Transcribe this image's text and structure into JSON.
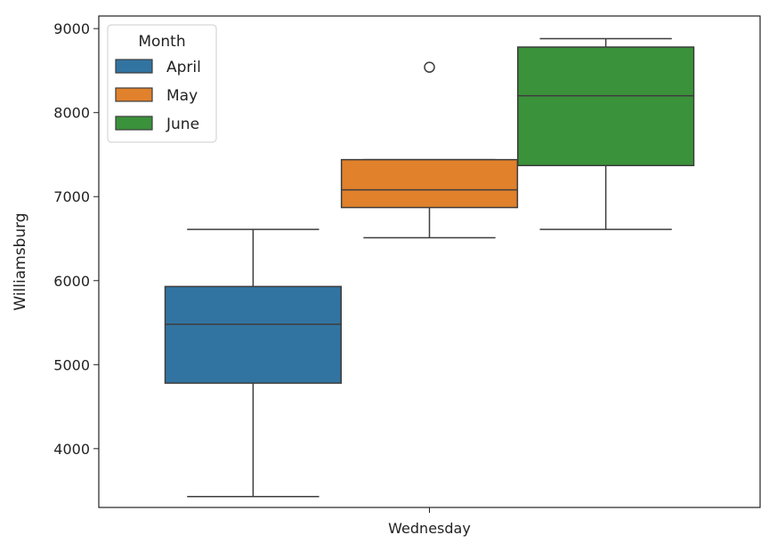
{
  "chart_data": {
    "type": "box",
    "title": "",
    "xlabel": "",
    "ylabel": "Williamsburg",
    "categories": [
      "Wednesday"
    ],
    "ylim": [
      3300,
      9150
    ],
    "yticks": [
      4000,
      5000,
      6000,
      7000,
      8000,
      9000
    ],
    "grid": false,
    "legend": {
      "title": "Month",
      "placement": "top-left",
      "entries": [
        "April",
        "May",
        "June"
      ]
    },
    "series": [
      {
        "name": "April",
        "color": "#3274a1",
        "min": 3430,
        "q1": 4780,
        "median": 5480,
        "q3": 5930,
        "max": 6610,
        "outliers": []
      },
      {
        "name": "May",
        "color": "#e1812c",
        "min": 6510,
        "q1": 6870,
        "median": 7080,
        "q3": 7440,
        "max": 7440,
        "outliers": [
          8540
        ]
      },
      {
        "name": "June",
        "color": "#3a923a",
        "min": 6610,
        "q1": 7370,
        "median": 8200,
        "q3": 8780,
        "max": 8880,
        "outliers": []
      }
    ]
  }
}
